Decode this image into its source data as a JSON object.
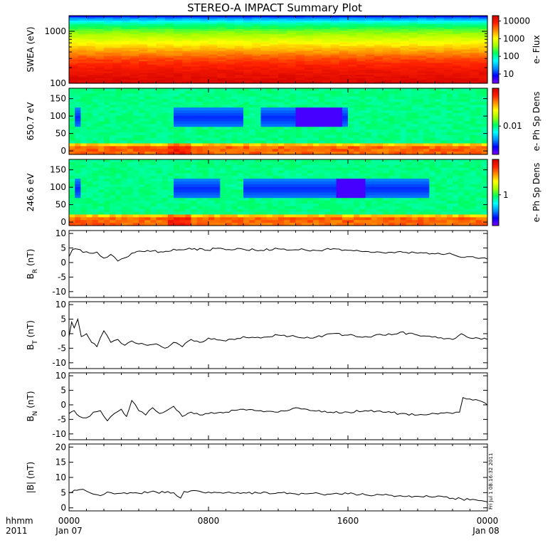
{
  "title": "STEREO-A IMPACT Summary Plot",
  "stamp": "Fri Jul 1 08:16:32 2011",
  "x_axis": {
    "row1": [
      "hhmm",
      "0000",
      "0800",
      "1600",
      "0000"
    ],
    "row2": [
      "2011",
      "Jan 07",
      "",
      "",
      "Jan 08"
    ]
  },
  "colors": {
    "jet": [
      "#7f00ff",
      "#0000ff",
      "#0090ff",
      "#00ffff",
      "#00ff60",
      "#a0ff00",
      "#ffff00",
      "#ff9000",
      "#ff2000",
      "#d00000"
    ],
    "line": "#000000"
  },
  "chart_data": [
    {
      "type": "heatmap",
      "id": "swea",
      "ylabel": "SWEA (eV)",
      "yscale": "log",
      "ylim": [
        100,
        2000
      ],
      "yticks": [
        {
          "v": 1000,
          "label": "1000"
        },
        {
          "v": 100,
          "label": "100"
        }
      ],
      "colorbar": {
        "label": "e- Flux",
        "scale": "log",
        "range": [
          3,
          20000
        ],
        "ticks": [
          {
            "v": 10000,
            "label": "10000"
          },
          {
            "v": 1000,
            "label": "1000"
          },
          {
            "v": 100,
            "label": "100"
          },
          {
            "v": 10,
            "label": "10"
          }
        ]
      },
      "energy_levels_eV": [
        100,
        120,
        150,
        200,
        300,
        450,
        700,
        1000,
        1400,
        1800,
        2000
      ],
      "flux_profile": [
        15000,
        14000,
        12000,
        9000,
        5000,
        2000,
        700,
        300,
        100,
        20,
        5
      ]
    },
    {
      "type": "heatmap",
      "id": "pad650",
      "ylabel": "650.7 eV",
      "ylim": [
        -10,
        180
      ],
      "yticks": [
        {
          "v": 150,
          "label": "150"
        },
        {
          "v": 100,
          "label": "100"
        },
        {
          "v": 50,
          "label": "50"
        },
        {
          "v": 0,
          "label": "0"
        }
      ],
      "colorbar": {
        "label": "e- Ph Sp Dens",
        "scale": "log",
        "range": [
          0.003,
          0.05
        ],
        "ticks": [
          {
            "v": 0.01,
            "label": "0.01"
          }
        ]
      },
      "pitch_angle_dip_intervals_hhmm": [
        [
          "0020",
          "0040"
        ],
        [
          "0600",
          "1000"
        ],
        [
          "1100",
          "1600"
        ]
      ],
      "strongest_dip_hhmm": [
        "1300",
        "1530"
      ]
    },
    {
      "type": "heatmap",
      "id": "pad246",
      "ylabel": "246.6 eV",
      "ylim": [
        -10,
        180
      ],
      "yticks": [
        {
          "v": 150,
          "label": "150"
        },
        {
          "v": 100,
          "label": "100"
        },
        {
          "v": 50,
          "label": "50"
        },
        {
          "v": 0,
          "label": "0"
        }
      ],
      "colorbar": {
        "label": "e- Ph Sp Dens",
        "scale": "log",
        "range": [
          0.3,
          4
        ],
        "ticks": [
          {
            "v": 1,
            "label": "1"
          }
        ]
      },
      "pitch_angle_dip_intervals_hhmm": [
        [
          "0020",
          "0040"
        ],
        [
          "0600",
          "0830"
        ],
        [
          "1000",
          "2030"
        ]
      ],
      "strongest_dip_hhmm": [
        "1530",
        "1700"
      ]
    },
    {
      "type": "line",
      "id": "br",
      "ylabel": "B",
      "ylabel_sub": "R",
      "ylabel_unit": " (nT)",
      "ylim": [
        -12,
        11
      ],
      "yticks": [
        {
          "v": 10,
          "label": "10"
        },
        {
          "v": 5,
          "label": "5"
        },
        {
          "v": 0,
          "label": "0"
        },
        {
          "v": -5,
          "label": "-5"
        },
        {
          "v": -10,
          "label": "-10"
        }
      ],
      "x_hours": [
        0,
        0.2,
        0.5,
        0.8,
        1.2,
        1.6,
        2.0,
        2.4,
        2.8,
        3.2,
        3.6,
        4.2,
        4.8,
        5.4,
        6.0,
        6.6,
        7.2,
        7.8,
        8.4,
        9.0,
        10,
        11,
        12,
        13,
        14,
        15,
        16,
        17,
        18,
        19,
        20,
        21,
        22,
        22.5,
        23,
        23.5,
        24
      ],
      "values": [
        2,
        4.5,
        4.6,
        3.5,
        3.2,
        3.6,
        1.5,
        2.8,
        0.5,
        1.6,
        3.2,
        3.8,
        4.0,
        3.6,
        4.6,
        4.4,
        4.8,
        4.2,
        4.8,
        4.4,
        4.6,
        4.2,
        4.7,
        4.4,
        4.3,
        4.5,
        4.2,
        3.8,
        3.4,
        3.8,
        3.2,
        3.0,
        2.8,
        1.8,
        2.0,
        1.4,
        1.2
      ]
    },
    {
      "type": "line",
      "id": "bt",
      "ylabel": "B",
      "ylabel_sub": "T",
      "ylabel_unit": " (nT)",
      "ylim": [
        -12,
        11
      ],
      "yticks": [
        {
          "v": 10,
          "label": "10"
        },
        {
          "v": 5,
          "label": "5"
        },
        {
          "v": 0,
          "label": "0"
        },
        {
          "v": -5,
          "label": "-5"
        },
        {
          "v": -10,
          "label": "-10"
        }
      ],
      "x_hours": [
        0,
        0.15,
        0.3,
        0.5,
        0.7,
        1.0,
        1.3,
        1.6,
        2.0,
        2.4,
        2.8,
        3.2,
        3.6,
        4.0,
        4.5,
        5.0,
        5.5,
        6.0,
        6.5,
        7.0,
        7.5,
        8.0,
        9.0,
        10,
        11,
        12,
        13,
        14,
        15,
        16,
        17,
        18,
        19,
        20,
        21,
        22,
        22.5,
        23,
        24
      ],
      "values": [
        -1,
        4,
        2,
        5,
        -1,
        0,
        -3,
        -4.5,
        1,
        -3,
        -2,
        -4,
        -2.5,
        -3.5,
        -4,
        -3.5,
        -5,
        -3,
        -4.5,
        -2,
        -3,
        -1.5,
        -2.5,
        -1,
        -1.5,
        -0.5,
        -1,
        -1.5,
        0,
        -0.5,
        -1,
        -0.5,
        0.5,
        -0.5,
        -1,
        -2,
        0,
        -1.5,
        -2
      ]
    },
    {
      "type": "line",
      "id": "bn",
      "ylabel": "B",
      "ylabel_sub": "N",
      "ylabel_unit": " (nT)",
      "ylim": [
        -12,
        11
      ],
      "yticks": [
        {
          "v": 10,
          "label": "10"
        },
        {
          "v": 5,
          "label": "5"
        },
        {
          "v": 0,
          "label": "0"
        },
        {
          "v": -5,
          "label": "-5"
        },
        {
          "v": -10,
          "label": "-10"
        }
      ],
      "x_hours": [
        0,
        0.3,
        0.6,
        1.0,
        1.4,
        1.8,
        2.2,
        2.6,
        3.0,
        3.3,
        3.6,
        4.0,
        4.4,
        4.8,
        5.2,
        5.6,
        6.0,
        6.5,
        7.0,
        7.5,
        8.0,
        9.0,
        10,
        11,
        12,
        13,
        14,
        15,
        16,
        17,
        18,
        19,
        20,
        21,
        22,
        22.4,
        22.6,
        23,
        23.5,
        24
      ],
      "values": [
        -3,
        -2,
        -4,
        -4.5,
        -2.5,
        -2,
        -5.5,
        -3,
        -1.5,
        -4,
        1.5,
        -2,
        -3.5,
        -1,
        -3,
        -2,
        -0.5,
        -4,
        -2.5,
        -3.5,
        -3,
        -2.5,
        -1.5,
        -2,
        -2.5,
        -1,
        -2,
        -2.5,
        -2.5,
        -2,
        -2.5,
        -3,
        -3.5,
        -3,
        -3,
        -2.5,
        2.5,
        2,
        1.5,
        0
      ]
    },
    {
      "type": "line",
      "id": "bmag",
      "ylabel": "|B| (nT)",
      "ylim": [
        -1,
        21
      ],
      "yticks": [
        {
          "v": 20,
          "label": "20"
        },
        {
          "v": 15,
          "label": "15"
        },
        {
          "v": 10,
          "label": "10"
        },
        {
          "v": 5,
          "label": "5"
        },
        {
          "v": 0,
          "label": "0"
        }
      ],
      "x_hours": [
        0,
        0.3,
        0.6,
        1.0,
        1.4,
        1.8,
        2.2,
        2.6,
        3.0,
        3.5,
        4.0,
        5.0,
        5.5,
        6.0,
        6.4,
        6.6,
        7.0,
        8.0,
        9.0,
        10,
        11,
        12,
        13,
        14,
        15,
        16,
        17,
        18,
        19,
        20,
        21,
        22,
        22.5,
        23,
        23.5,
        24
      ],
      "values": [
        5,
        5.8,
        6.0,
        5.5,
        4.5,
        4.0,
        5.2,
        4.6,
        4.8,
        5.0,
        4.8,
        5.2,
        5.0,
        5.0,
        3.2,
        5.4,
        5.6,
        5.2,
        5.0,
        5.0,
        4.8,
        5.0,
        4.6,
        4.8,
        4.5,
        4.6,
        4.3,
        4.2,
        4.0,
        3.8,
        3.6,
        3.2,
        3.0,
        2.6,
        2.4,
        2.0
      ]
    }
  ]
}
